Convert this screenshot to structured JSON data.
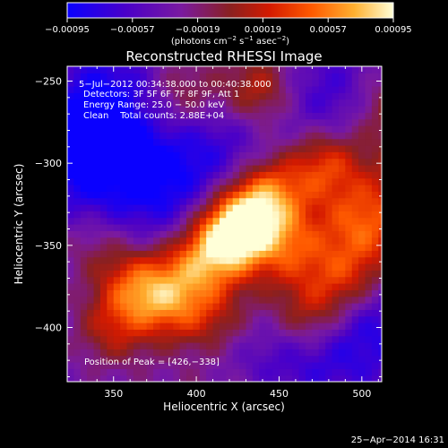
{
  "chart_data": {
    "type": "heatmap",
    "title": "Reconstructed RHESSI Image",
    "xlabel": "Heliocentric X (arcsec)",
    "ylabel": "Heliocentric Y (arcsec)",
    "xlim": [
      322,
      512
    ],
    "ylim": [
      -433,
      -241
    ],
    "x_ticks": [
      350,
      400,
      450,
      500
    ],
    "y_ticks": [
      -250,
      -300,
      -350,
      -400
    ],
    "x_tick_labels": [
      "350",
      "400",
      "450",
      "500"
    ],
    "y_tick_labels": [
      "−250",
      "−300",
      "−350",
      "−400"
    ],
    "colorbar": {
      "range": [
        -0.00095,
        0.00095
      ],
      "tick_labels": [
        "−0.00095",
        "−0.00057",
        "−0.00019",
        "0.00019",
        "0.00057",
        "0.00095"
      ],
      "unit_label_parts": [
        "(photons cm",
        "−2",
        " s",
        "−1",
        " asec",
        "−2",
        ")"
      ]
    },
    "annotations": [
      "5−Jul−2012 00:34:38.000 to 00:40:38.000",
      "Detectors: 3F 5F 6F 7F 8F 9F, Att 1",
      "Energy Range: 25.0 − 50.0 keV",
      "Clean    Total counts: 2.88E+04"
    ],
    "peak_label": "Position of Peak = [426,−338]",
    "peak": [
      426,
      -338
    ],
    "sources": [
      {
        "x": 428,
        "y": -335,
        "intensity": 0.00095
      },
      {
        "x": 418,
        "y": -348,
        "intensity": 0.0008
      },
      {
        "x": 365,
        "y": -375,
        "intensity": 0.0007
      },
      {
        "x": 445,
        "y": -318,
        "intensity": 0.00072
      },
      {
        "x": 478,
        "y": -300,
        "intensity": 0.00065
      },
      {
        "x": 400,
        "y": -362,
        "intensity": 0.0006
      },
      {
        "x": 385,
        "y": -385,
        "intensity": 0.00058
      },
      {
        "x": 455,
        "y": -350,
        "intensity": 0.0005
      },
      {
        "x": 500,
        "y": -335,
        "intensity": 0.0004
      },
      {
        "x": 437,
        "y": -255,
        "intensity": 0.00055
      },
      {
        "x": 392,
        "y": -258,
        "intensity": 0.00042
      },
      {
        "x": 350,
        "y": -400,
        "intensity": 0.00045
      },
      {
        "x": 490,
        "y": -370,
        "intensity": 0.00042
      },
      {
        "x": 470,
        "y": -395,
        "intensity": 0.0005
      },
      {
        "x": 510,
        "y": -265,
        "intensity": 0.00035
      },
      {
        "x": 340,
        "y": -350,
        "intensity": 0.00025
      },
      {
        "x": 410,
        "y": -395,
        "intensity": 0.00035
      }
    ],
    "negative_bands": [
      {
        "x": 345,
        "y": -262,
        "intensity": -0.00055
      },
      {
        "x": 375,
        "y": -315,
        "intensity": -0.0005
      },
      {
        "x": 330,
        "y": -300,
        "intensity": -0.00055
      },
      {
        "x": 470,
        "y": -415,
        "intensity": -0.0006
      },
      {
        "x": 435,
        "y": -425,
        "intensity": -0.0004
      },
      {
        "x": 505,
        "y": -395,
        "intensity": -0.00055
      },
      {
        "x": 485,
        "y": -262,
        "intensity": -0.0004
      },
      {
        "x": 410,
        "y": -290,
        "intensity": -0.00035
      }
    ],
    "colormap": "IDL Red Temperature-like: blue-violet (negative) to orange/white (positive)"
  },
  "footer_timestamp": "25−Apr−2014 16:31"
}
